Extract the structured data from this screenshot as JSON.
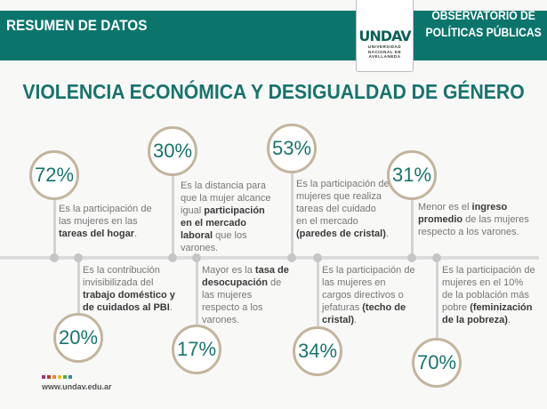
{
  "header": {
    "left": "RESUMEN DE DATOS",
    "right_line1": "OBSERVATORIO DE",
    "right_line2": "POLÍTICAS PÚBLICAS"
  },
  "logo": {
    "mark": "UNDAV",
    "sub": "UNIVERSIDAD\nNACIONAL DE\nAVELLANEDA"
  },
  "title": "VIOLENCIA ECONÓMICA Y DESIGUALDAD DE GÉNERO",
  "colors": {
    "teal": "#0b756c",
    "ring": "#c3b59c",
    "footer_dots": [
      "#8a3a7a",
      "#c0392b",
      "#e08a2a",
      "#e6c12e",
      "#5aa545",
      "#2a8f9a"
    ]
  },
  "items": [
    {
      "value": "72%",
      "desc": [
        {
          "t": "Es la participación de las mujeres en las "
        },
        {
          "t": "tareas del hogar",
          "b": 1
        },
        {
          "t": "."
        }
      ]
    },
    {
      "value": "20%",
      "desc": [
        {
          "t": "Es la contribución invisibilizada del "
        },
        {
          "t": "trabajo doméstico y de cuidados al PBI",
          "b": 1
        },
        {
          "t": "."
        }
      ]
    },
    {
      "value": "30%",
      "desc": [
        {
          "t": "Es la distancia para que la mujer alcance igual "
        },
        {
          "t": "participación en el mercado laboral",
          "b": 1
        },
        {
          "t": " que los varones."
        }
      ]
    },
    {
      "value": "17%",
      "desc": [
        {
          "t": "Mayor es la "
        },
        {
          "t": "tasa de desocupación",
          "b": 1
        },
        {
          "t": " de las mujeres respecto a los varones."
        }
      ]
    },
    {
      "value": "53%",
      "desc": [
        {
          "t": "Es la participación de mujeres que realiza tareas del cuidado en el mercado "
        },
        {
          "t": "(paredes de cristal)",
          "b": 1
        },
        {
          "t": "."
        }
      ]
    },
    {
      "value": "34%",
      "desc": [
        {
          "t": "Es la participación de las mujeres en cargos directivos o jefaturas "
        },
        {
          "t": "(techo de cristal)",
          "b": 1
        },
        {
          "t": "."
        }
      ]
    },
    {
      "value": "31%",
      "desc": [
        {
          "t": "Menor es el "
        },
        {
          "t": "ingreso promedio",
          "b": 1
        },
        {
          "t": " de las mujeres respecto a los varones."
        }
      ]
    },
    {
      "value": "70%",
      "desc": [
        {
          "t": "Es la participación de mujeres en el 10% de la población más pobre "
        },
        {
          "t": "(feminización de la pobreza)",
          "b": 1
        },
        {
          "t": "."
        }
      ]
    }
  ],
  "footer": {
    "url": "www.undav.edu.ar"
  }
}
